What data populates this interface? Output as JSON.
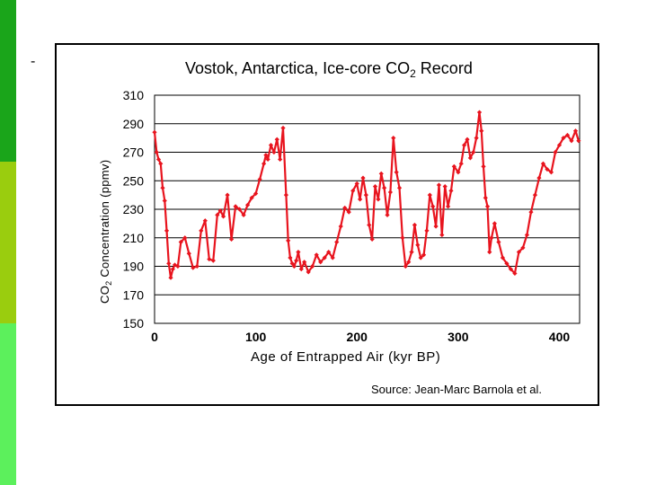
{
  "slide": {
    "bullet": "-",
    "accent_colors": [
      "#1aa51a",
      "#9acd0e",
      "#5cf05c"
    ]
  },
  "chart_data": {
    "type": "line",
    "title": "Vostok, Antarctica, Ice-core CO2 Record",
    "title_main": "Vostok, Antarctica, Ice-core CO",
    "title_sub": "2",
    "title_end": " Record",
    "xlabel": "Age of Entrapped Air (kyr BP)",
    "ylabel": "CO2 Concentration (ppmv)",
    "ylabel_pre": "CO",
    "ylabel_sub": "2",
    "ylabel_post": " Concentration (ppmv)",
    "source": "Source: Jean-Marc Barnola et al.",
    "xlim": [
      0,
      420
    ],
    "ylim": [
      150,
      310
    ],
    "xticks": [
      0,
      100,
      200,
      300,
      400
    ],
    "yticks": [
      150,
      170,
      190,
      210,
      230,
      250,
      270,
      290,
      310
    ],
    "grid": true,
    "series_color": "#e8141e",
    "series": [
      {
        "name": "CO2",
        "x": [
          0,
          2,
          4,
          6,
          8,
          10,
          12,
          14,
          16,
          18,
          20,
          23,
          26,
          30,
          34,
          38,
          42,
          46,
          50,
          54,
          58,
          62,
          65,
          68,
          72,
          76,
          80,
          84,
          88,
          92,
          96,
          100,
          104,
          108,
          110,
          112,
          115,
          118,
          121,
          124,
          127,
          130,
          132,
          134,
          136,
          138,
          140,
          142,
          145,
          148,
          152,
          156,
          160,
          164,
          168,
          172,
          176,
          180,
          184,
          188,
          192,
          196,
          200,
          203,
          206,
          209,
          212,
          215,
          218,
          221,
          224,
          227,
          230,
          233,
          236,
          239,
          242,
          245,
          248,
          251,
          254,
          257,
          260,
          263,
          266,
          269,
          272,
          275,
          278,
          281,
          284,
          287,
          290,
          293,
          296,
          300,
          303,
          306,
          309,
          312,
          315,
          318,
          321,
          323,
          325,
          327,
          329,
          331,
          333,
          336,
          340,
          344,
          348,
          352,
          356,
          360,
          364,
          368,
          372,
          376,
          380,
          384,
          388,
          392,
          396,
          400,
          404,
          408,
          412,
          416,
          419
        ],
        "y": [
          284,
          270,
          265,
          262,
          245,
          236,
          215,
          192,
          182,
          188,
          191,
          190,
          207,
          210,
          199,
          189,
          190,
          215,
          222,
          195,
          194,
          226,
          229,
          225,
          240,
          209,
          232,
          230,
          226,
          233,
          238,
          241,
          251,
          262,
          268,
          265,
          275,
          270,
          279,
          265,
          287,
          240,
          208,
          196,
          192,
          190,
          194,
          200,
          188,
          193,
          186,
          190,
          198,
          193,
          196,
          200,
          196,
          207,
          218,
          231,
          228,
          243,
          248,
          237,
          252,
          240,
          219,
          209,
          246,
          237,
          255,
          245,
          226,
          242,
          280,
          256,
          245,
          210,
          190,
          193,
          200,
          219,
          205,
          196,
          198,
          215,
          240,
          232,
          218,
          247,
          212,
          246,
          232,
          243,
          260,
          256,
          262,
          275,
          279,
          266,
          270,
          280,
          298,
          285,
          260,
          238,
          232,
          200,
          210,
          220,
          207,
          196,
          192,
          188,
          185,
          200,
          203,
          212,
          228,
          240,
          252,
          262,
          258,
          256,
          270,
          275,
          280,
          282,
          278,
          285,
          278
        ]
      }
    ]
  }
}
